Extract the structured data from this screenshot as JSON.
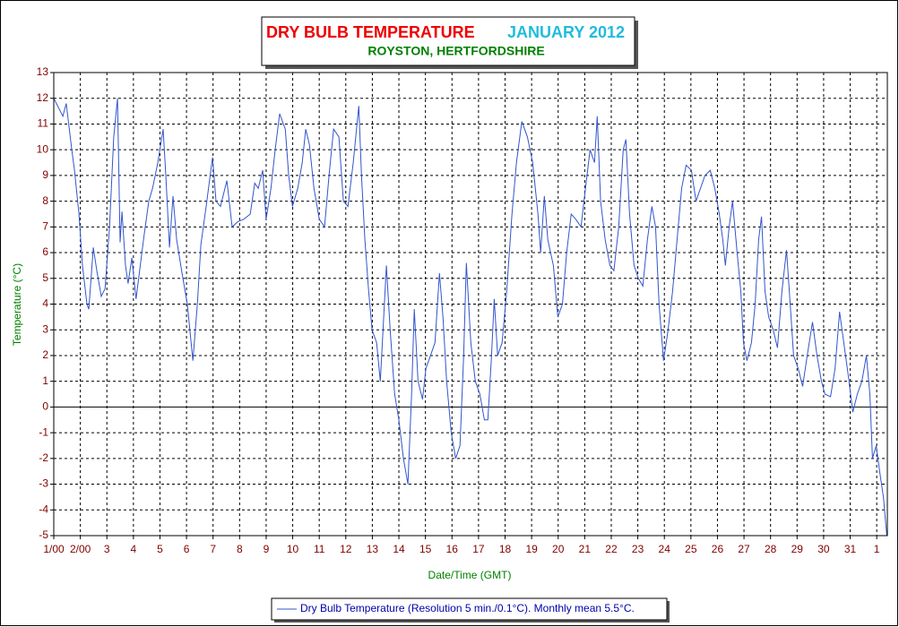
{
  "chart_data": {
    "type": "line",
    "title": "DRY BULB TEMPERATURE",
    "period": "JANUARY 2012",
    "subtitle": "ROYSTON, HERTFORDSHIRE",
    "x_label": "Date/Time (GMT)",
    "y_label": "Temperature (°C)",
    "xlim": [
      1,
      32.4
    ],
    "ylim": [
      -5,
      13
    ],
    "xticks": [
      {
        "value": 1,
        "label": "1/00"
      },
      {
        "value": 2,
        "label": "2/00"
      },
      3,
      4,
      5,
      6,
      7,
      8,
      9,
      10,
      11,
      12,
      13,
      14,
      15,
      16,
      17,
      18,
      19,
      20,
      21,
      22,
      23,
      24,
      25,
      26,
      27,
      28,
      29,
      30,
      31,
      {
        "value": 32,
        "label": "1"
      }
    ],
    "yticks": [
      -5,
      -4,
      -3,
      -2,
      -1,
      0,
      1,
      2,
      3,
      4,
      5,
      6,
      7,
      8,
      9,
      10,
      11,
      12,
      13
    ],
    "grid": true,
    "legend": "bottom",
    "x": [
      1.0,
      1.34,
      1.47,
      1.68,
      1.78,
      1.95,
      2.08,
      2.25,
      2.32,
      2.49,
      2.62,
      2.79,
      2.93,
      3.1,
      3.26,
      3.4,
      3.5,
      3.57,
      3.7,
      3.8,
      3.94,
      4.1,
      4.38,
      4.58,
      4.72,
      4.92,
      5.12,
      5.22,
      5.36,
      5.49,
      5.63,
      5.83,
      6.03,
      6.24,
      6.41,
      6.54,
      6.74,
      6.98,
      7.11,
      7.28,
      7.52,
      7.72,
      7.93,
      8.16,
      8.4,
      8.57,
      8.7,
      8.87,
      9.0,
      9.18,
      9.34,
      9.51,
      9.72,
      9.85,
      9.99,
      10.19,
      10.36,
      10.49,
      10.63,
      10.8,
      11.0,
      11.2,
      11.37,
      11.54,
      11.74,
      11.91,
      12.08,
      12.28,
      12.49,
      12.59,
      12.72,
      12.86,
      12.99,
      13.16,
      13.3,
      13.43,
      13.53,
      13.67,
      13.84,
      14.0,
      14.17,
      14.34,
      14.48,
      14.58,
      14.72,
      14.89,
      15.02,
      15.19,
      15.36,
      15.53,
      15.66,
      15.8,
      15.97,
      16.14,
      16.3,
      16.44,
      16.54,
      16.71,
      16.88,
      17.05,
      17.22,
      17.35,
      17.49,
      17.59,
      17.72,
      17.89,
      18.06,
      18.26,
      18.43,
      18.63,
      18.84,
      19.04,
      19.24,
      19.34,
      19.48,
      19.61,
      19.82,
      19.99,
      20.16,
      20.32,
      20.49,
      20.66,
      20.86,
      21.03,
      21.2,
      21.37,
      21.47,
      21.6,
      21.77,
      21.95,
      22.1,
      22.28,
      22.45,
      22.55,
      22.69,
      22.86,
      23.02,
      23.19,
      23.36,
      23.53,
      23.67,
      23.8,
      23.97,
      24.14,
      24.31,
      24.48,
      24.65,
      24.82,
      25.02,
      25.19,
      25.36,
      25.53,
      25.73,
      25.9,
      26.07,
      26.2,
      26.3,
      26.44,
      26.57,
      26.74,
      26.88,
      26.98,
      27.11,
      27.28,
      27.42,
      27.55,
      27.66,
      27.79,
      27.93,
      28.1,
      28.26,
      28.43,
      28.6,
      28.74,
      28.87,
      29.04,
      29.21,
      29.38,
      29.58,
      29.75,
      29.92,
      30.05,
      30.26,
      30.43,
      30.6,
      30.76,
      30.93,
      31.1,
      31.27,
      31.44,
      31.61,
      31.74,
      31.84,
      31.98,
      32.11,
      32.25,
      32.38
    ],
    "series": [
      {
        "name": "Dry Bulb Temperature (Resolution 5 min./0.1°C). Monthly mean 5.5°C.",
        "color": "#3355cc",
        "values": [
          12.0,
          11.3,
          11.8,
          10.0,
          9.2,
          7.5,
          5.5,
          4.0,
          3.8,
          6.2,
          5.3,
          4.3,
          4.6,
          7.0,
          10.5,
          12.0,
          6.4,
          7.6,
          5.5,
          4.8,
          5.8,
          4.2,
          6.5,
          8.0,
          8.5,
          9.5,
          10.8,
          9.0,
          6.2,
          8.2,
          6.5,
          5.2,
          4.0,
          1.8,
          4.0,
          6.3,
          7.8,
          9.7,
          8.0,
          7.8,
          8.8,
          7.0,
          7.2,
          7.3,
          7.5,
          8.7,
          8.5,
          9.2,
          7.3,
          8.5,
          10.0,
          11.4,
          10.8,
          9.0,
          7.8,
          8.5,
          9.5,
          10.8,
          10.2,
          8.5,
          7.3,
          7.0,
          9.0,
          10.8,
          10.5,
          8.0,
          7.8,
          9.5,
          11.7,
          9.0,
          6.5,
          4.5,
          3.0,
          2.5,
          1.0,
          3.5,
          5.5,
          3.0,
          0.5,
          -0.5,
          -2.0,
          -3.0,
          0.5,
          3.8,
          1.0,
          0.3,
          1.5,
          2.0,
          2.5,
          5.2,
          3.5,
          1.0,
          -1.0,
          -2.0,
          -1.5,
          2.0,
          5.6,
          2.5,
          1.0,
          0.5,
          -0.5,
          -0.5,
          2.0,
          4.2,
          2.0,
          2.5,
          4.5,
          7.5,
          9.5,
          11.1,
          10.5,
          9.5,
          7.5,
          6.0,
          8.2,
          6.5,
          5.5,
          3.5,
          4.0,
          6.0,
          7.5,
          7.3,
          7.0,
          8.5,
          10.0,
          9.5,
          11.3,
          8.0,
          6.5,
          5.5,
          5.3,
          7.0,
          10.0,
          10.4,
          7.5,
          5.5,
          5.0,
          4.7,
          6.5,
          7.8,
          7.0,
          4.0,
          1.8,
          3.0,
          4.5,
          6.5,
          8.5,
          9.4,
          9.2,
          8.0,
          8.5,
          9.0,
          9.2,
          8.5,
          7.5,
          6.5,
          5.5,
          7.0,
          8.0,
          6.0,
          4.5,
          2.5,
          1.8,
          2.5,
          4.0,
          6.5,
          7.4,
          4.5,
          3.5,
          3.0,
          2.3,
          4.5,
          6.1,
          4.0,
          2.0,
          1.5,
          0.8,
          2.0,
          3.3,
          2.0,
          1.0,
          0.5,
          0.4,
          1.5,
          3.7,
          2.5,
          1.2,
          -0.2,
          0.5,
          1.0,
          2.0,
          0.5,
          -2.0,
          -1.5,
          -2.5,
          -3.5,
          -5.0
        ]
      }
    ]
  }
}
